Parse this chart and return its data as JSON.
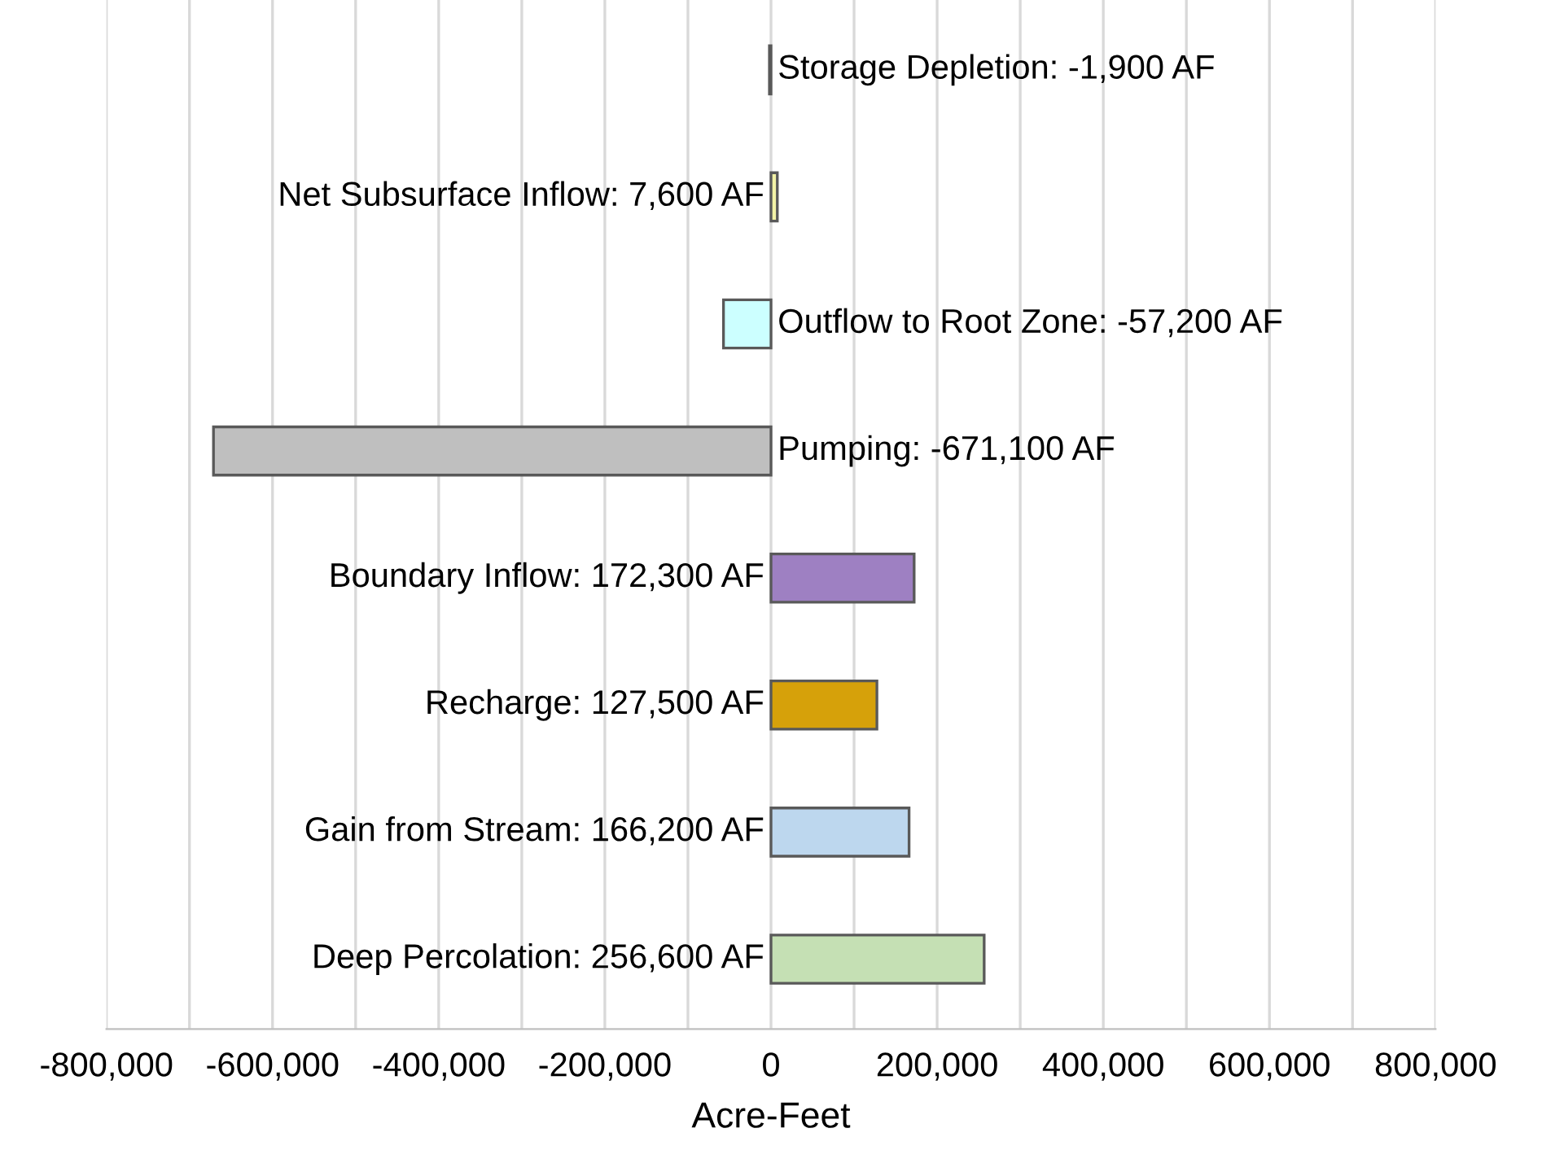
{
  "chart_data": {
    "type": "bar",
    "orientation": "horizontal",
    "xlabel": "Acre-Feet",
    "categories": [
      null,
      null,
      null,
      null,
      null,
      null,
      null,
      null
    ],
    "values": [
      -1900,
      7600,
      -57200,
      -671100,
      172300,
      127500,
      166200,
      256600
    ],
    "value_labels": [
      "Storage Depletion: -1,900 AF",
      "Net Subsurface Inflow: 7,600 AF",
      "Outflow to Root Zone: -57,200 AF",
      "Pumping: -671,100 AF",
      "Boundary Inflow: 172,300 AF",
      "Recharge: 127,500 AF",
      "Gain from Stream: 166,200 AF",
      "Deep Percolation: 256,600 AF"
    ],
    "colors": [
      "#7f7f7f",
      "#f2f2a6",
      "#ccffff",
      "#bfbfbf",
      "#9e80c2",
      "#d6a10a",
      "#bdd7ee",
      "#c5e0b4"
    ],
    "xlim": [
      -800000,
      800000
    ],
    "xticks": [
      {
        "value": -800000,
        "label": "-800,000"
      },
      {
        "value": -700000,
        "label": null
      },
      {
        "value": -600000,
        "label": "-600,000"
      },
      {
        "value": -500000,
        "label": null
      },
      {
        "value": -400000,
        "label": "-400,000"
      },
      {
        "value": -300000,
        "label": null
      },
      {
        "value": -200000,
        "label": "-200,000"
      },
      {
        "value": -100000,
        "label": null
      },
      0,
      {
        "value": 100000,
        "label": null
      },
      {
        "value": 200000,
        "label": "200,000"
      },
      {
        "value": 300000,
        "label": null
      },
      {
        "value": 400000,
        "label": "400,000"
      },
      {
        "value": 500000,
        "label": null
      },
      {
        "value": 600000,
        "label": "600,000"
      },
      {
        "value": 700000,
        "label": null
      },
      {
        "value": 800000,
        "label": "800,000"
      }
    ],
    "grid": "x",
    "legend": false
  }
}
